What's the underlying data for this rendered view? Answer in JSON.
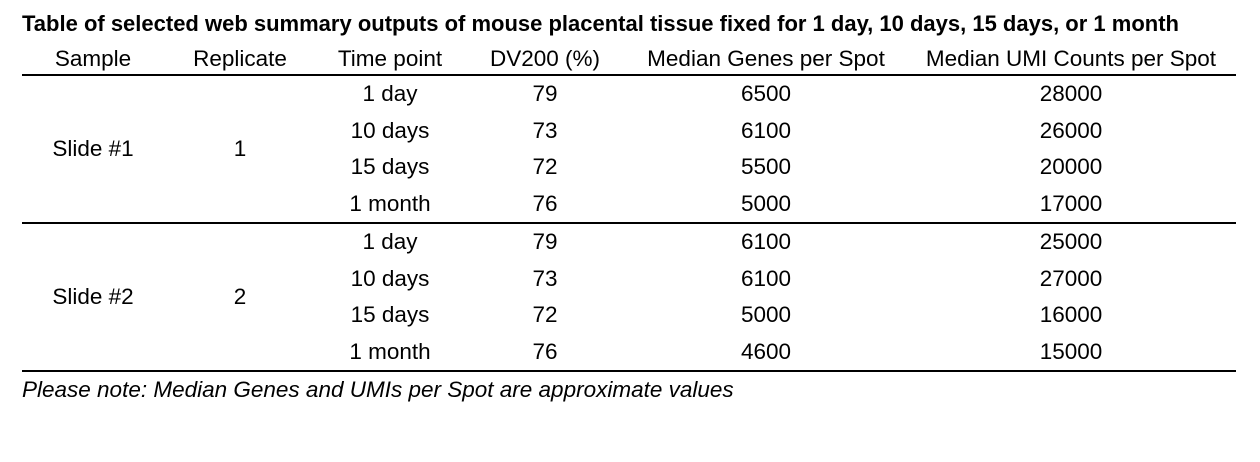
{
  "title": "Table of selected web summary outputs of mouse placental tissue fixed for 1 day, 10 days, 15 days, or 1 month",
  "columns": [
    "Sample",
    "Replicate",
    "Time point",
    "DV200 (%)",
    "Median Genes per Spot",
    "Median UMI Counts per Spot"
  ],
  "groups": [
    {
      "sample": "Slide #1",
      "replicate": "1",
      "rows": [
        {
          "time_point": "1 day",
          "dv200": "79",
          "median_genes": "6500",
          "median_umi": "28000"
        },
        {
          "time_point": "10 days",
          "dv200": "73",
          "median_genes": "6100",
          "median_umi": "26000"
        },
        {
          "time_point": "15 days",
          "dv200": "72",
          "median_genes": "5500",
          "median_umi": "20000"
        },
        {
          "time_point": "1 month",
          "dv200": "76",
          "median_genes": "5000",
          "median_umi": "17000"
        }
      ]
    },
    {
      "sample": "Slide #2",
      "replicate": "2",
      "rows": [
        {
          "time_point": "1 day",
          "dv200": "79",
          "median_genes": "6100",
          "median_umi": "25000"
        },
        {
          "time_point": "10 days",
          "dv200": "73",
          "median_genes": "6100",
          "median_umi": "27000"
        },
        {
          "time_point": "15 days",
          "dv200": "72",
          "median_genes": "5000",
          "median_umi": "16000"
        },
        {
          "time_point": "1 month",
          "dv200": "76",
          "median_genes": "4600",
          "median_umi": "15000"
        }
      ]
    }
  ],
  "note": "Please note: Median Genes and UMIs per Spot are approximate values"
}
